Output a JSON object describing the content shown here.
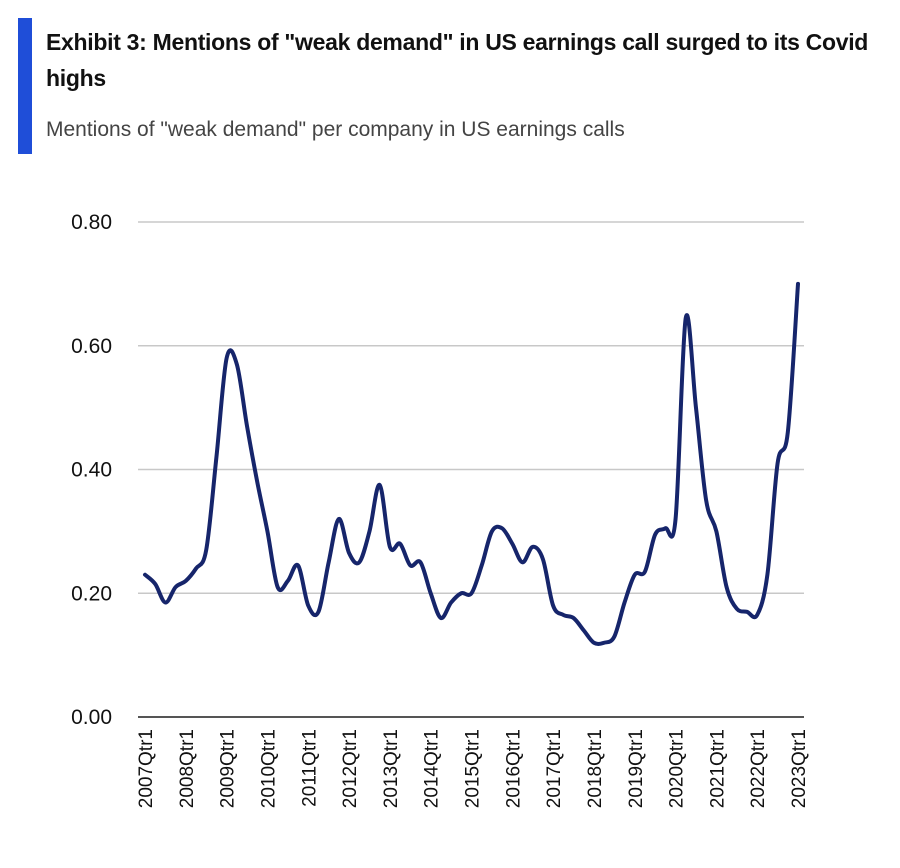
{
  "chart_data": {
    "type": "line",
    "title": "Exhibit 3: Mentions of \"weak demand\" in US earnings call surged to its Covid highs",
    "subtitle": "Mentions of \"weak demand\" per company in US earnings calls",
    "categories": [
      "2007Qtr1",
      null,
      null,
      null,
      "2008Qtr1",
      null,
      null,
      null,
      "2009Qtr1",
      null,
      null,
      null,
      "2010Qtr1",
      null,
      null,
      null,
      "2011Qtr1",
      null,
      null,
      null,
      "2012Qtr1",
      null,
      null,
      null,
      "2013Qtr1",
      null,
      null,
      null,
      "2014Qtr1",
      null,
      null,
      null,
      "2015Qtr1",
      null,
      null,
      null,
      "2016Qtr1",
      null,
      null,
      null,
      "2017Qtr1",
      null,
      null,
      null,
      "2018Qtr1",
      null,
      null,
      null,
      "2019Qtr1",
      null,
      null,
      null,
      "2020Qtr1",
      null,
      null,
      null,
      "2021Qtr1",
      null,
      null,
      null,
      "2022Qtr1",
      null,
      null,
      null,
      "2023Qtr1"
    ],
    "series": [
      {
        "color": "#16256b",
        "values": [
          0.23,
          0.215,
          0.185,
          0.21,
          0.22,
          0.24,
          0.27,
          0.42,
          0.58,
          0.57,
          0.47,
          0.38,
          0.3,
          0.21,
          0.22,
          0.245,
          0.18,
          0.17,
          0.25,
          0.32,
          0.265,
          0.25,
          0.3,
          0.375,
          0.275,
          0.28,
          0.245,
          0.25,
          0.2,
          0.16,
          0.185,
          0.2,
          0.2,
          0.245,
          0.3,
          0.305,
          0.28,
          0.25,
          0.275,
          0.255,
          0.18,
          0.165,
          0.16,
          0.14,
          0.12,
          0.12,
          0.13,
          0.185,
          0.23,
          0.235,
          0.295,
          0.305,
          0.32,
          0.645,
          0.5,
          0.35,
          0.3,
          0.21,
          0.175,
          0.17,
          0.165,
          0.23,
          0.41,
          0.46,
          0.7
        ]
      }
    ],
    "ylim": [
      0,
      0.8
    ],
    "yticks": [
      {
        "value": 0,
        "label": "0.00"
      },
      {
        "value": 0.2,
        "label": "0.20"
      },
      {
        "value": 0.4,
        "label": "0.40"
      },
      {
        "value": 0.6,
        "label": "0.60"
      },
      {
        "value": 0.8,
        "label": "0.80"
      }
    ],
    "grid": true
  }
}
